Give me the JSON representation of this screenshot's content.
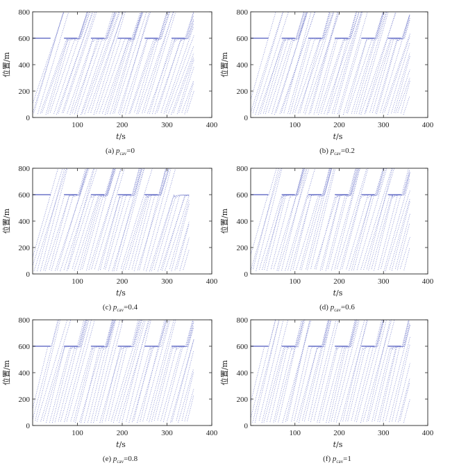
{
  "figure": {
    "y_label": "位置/m",
    "x_label_italic": "t",
    "x_label_unit": "/s"
  },
  "chart_data": [
    {
      "type": "scatter",
      "caption_prefix": "(a) ",
      "p_symbol": "p",
      "p_sub": "cav",
      "caption_value": "=0",
      "xlim": [
        0,
        400
      ],
      "ylim": [
        0,
        800
      ],
      "x_ticks": [
        "100",
        "200",
        "300",
        "400"
      ],
      "y_ticks": [
        "0",
        "200",
        "400",
        "600",
        "800"
      ],
      "grid": false,
      "color": "#6b74c9",
      "stop_line_y": 600,
      "green_windows": [
        [
          40,
          70
        ],
        [
          100,
          130
        ],
        [
          160,
          190
        ],
        [
          220,
          250
        ],
        [
          280,
          310
        ],
        [
          340,
          360
        ]
      ],
      "n_vehicles": 60,
      "x_end": 360
    },
    {
      "type": "scatter",
      "caption_prefix": "(b) ",
      "p_symbol": "p",
      "p_sub": "cav",
      "caption_value": "=0.2",
      "xlim": [
        0,
        400
      ],
      "ylim": [
        0,
        800
      ],
      "x_ticks": [
        "100",
        "200",
        "300",
        "400"
      ],
      "y_ticks": [
        "0",
        "200",
        "400",
        "600",
        "800"
      ],
      "grid": false,
      "color": "#6b74c9",
      "stop_line_y": 600,
      "green_windows": [
        [
          40,
          70
        ],
        [
          100,
          130
        ],
        [
          160,
          190
        ],
        [
          220,
          250
        ],
        [
          280,
          310
        ],
        [
          340,
          360
        ]
      ],
      "n_vehicles": 60,
      "x_end": 360
    },
    {
      "type": "scatter",
      "caption_prefix": "(c) ",
      "p_symbol": "p",
      "p_sub": "cav",
      "caption_value": "=0.4",
      "xlim": [
        0,
        400
      ],
      "ylim": [
        0,
        800
      ],
      "x_ticks": [
        "100",
        "200",
        "300",
        "400"
      ],
      "y_ticks": [
        "0",
        "200",
        "400",
        "600",
        "800"
      ],
      "grid": false,
      "color": "#6b74c9",
      "stop_line_y": 600,
      "green_windows": [
        [
          40,
          70
        ],
        [
          100,
          130
        ],
        [
          160,
          190
        ],
        [
          220,
          250
        ],
        [
          280,
          310
        ]
      ],
      "n_vehicles": 55,
      "x_end": 350
    },
    {
      "type": "scatter",
      "caption_prefix": "(d) ",
      "p_symbol": "p",
      "p_sub": "cav",
      "caption_value": "=0.6",
      "xlim": [
        0,
        400
      ],
      "ylim": [
        0,
        800
      ],
      "x_ticks": [
        "100",
        "200",
        "300",
        "400"
      ],
      "y_ticks": [
        "0",
        "200",
        "400",
        "600",
        "800"
      ],
      "grid": false,
      "color": "#6b74c9",
      "stop_line_y": 600,
      "green_windows": [
        [
          40,
          70
        ],
        [
          100,
          130
        ],
        [
          160,
          190
        ],
        [
          220,
          250
        ],
        [
          280,
          310
        ],
        [
          340,
          360
        ]
      ],
      "n_vehicles": 55,
      "x_end": 360
    },
    {
      "type": "scatter",
      "caption_prefix": "(e) ",
      "p_symbol": "p",
      "p_sub": "cav",
      "caption_value": "=0.8",
      "xlim": [
        0,
        400
      ],
      "ylim": [
        0,
        800
      ],
      "x_ticks": [
        "100",
        "200",
        "300",
        "400"
      ],
      "y_ticks": [
        "0",
        "200",
        "400",
        "600",
        "800"
      ],
      "grid": false,
      "color": "#6b74c9",
      "stop_line_y": 600,
      "green_windows": [
        [
          40,
          70
        ],
        [
          100,
          130
        ],
        [
          160,
          190
        ],
        [
          220,
          250
        ],
        [
          280,
          310
        ],
        [
          340,
          360
        ]
      ],
      "n_vehicles": 55,
      "x_end": 360
    },
    {
      "type": "scatter",
      "caption_prefix": "(f) ",
      "p_symbol": "p",
      "p_sub": "cav",
      "caption_value": "=1",
      "xlim": [
        0,
        400
      ],
      "ylim": [
        0,
        800
      ],
      "x_ticks": [
        "100",
        "200",
        "300",
        "400"
      ],
      "y_ticks": [
        "0",
        "200",
        "400",
        "600",
        "800"
      ],
      "grid": false,
      "color": "#6b74c9",
      "stop_line_y": 600,
      "green_windows": [
        [
          40,
          70
        ],
        [
          100,
          130
        ],
        [
          160,
          190
        ],
        [
          220,
          250
        ],
        [
          280,
          310
        ],
        [
          340,
          360
        ]
      ],
      "n_vehicles": 55,
      "x_end": 360
    }
  ]
}
